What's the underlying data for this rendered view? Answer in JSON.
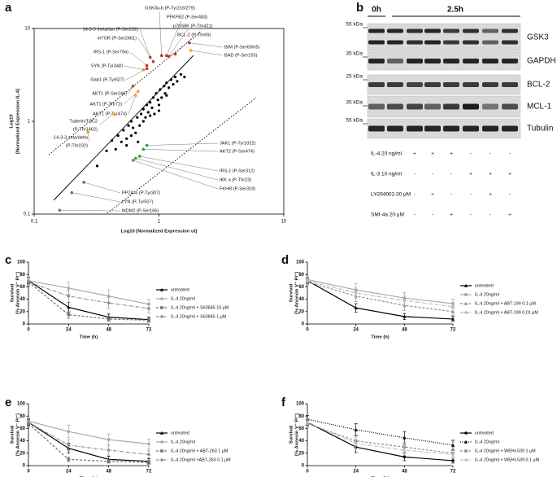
{
  "panel_labels": [
    "a",
    "b",
    "c",
    "d",
    "e",
    "f"
  ],
  "chart_data": [
    {
      "type": "scatter",
      "log_scale": true,
      "xlabel": "Log10 [Normalized Expression ut]",
      "ylabel": [
        "Log10",
        "[Normalized Expression IL-4]"
      ],
      "xlim": [
        0.1,
        10
      ],
      "ylim": [
        0.1,
        10
      ],
      "xticks": [
        0.1,
        1,
        10
      ],
      "yticks": [
        0.1,
        1,
        10
      ],
      "series": [
        {
          "color": "#000000",
          "x": [
            0.32,
            0.38,
            0.42,
            0.45,
            0.47,
            0.5,
            0.52,
            0.55,
            0.57,
            0.6,
            0.6,
            0.62,
            0.65,
            0.67,
            0.7,
            0.72,
            0.75,
            0.75,
            0.78,
            0.8,
            0.82,
            0.85,
            0.88,
            0.9,
            0.92,
            0.95,
            0.98,
            1.0,
            1.02,
            1.05,
            1.1,
            1.12,
            1.15,
            1.2,
            1.25,
            1.3,
            1.35,
            1.4,
            1.5,
            1.6,
            0.55,
            0.68,
            0.85,
            1.0,
            1.15
          ],
          "values": [
            0.33,
            0.48,
            0.62,
            0.5,
            0.7,
            0.6,
            0.8,
            0.55,
            0.9,
            0.7,
            1.0,
            0.85,
            0.75,
            1.1,
            0.9,
            1.2,
            1.0,
            1.35,
            1.1,
            1.5,
            1.25,
            1.6,
            1.4,
            1.8,
            1.2,
            2.0,
            1.7,
            1.5,
            2.2,
            1.8,
            2.4,
            2.0,
            2.6,
            2.3,
            2.8,
            2.5,
            3.0,
            2.7,
            3.2,
            3.0,
            0.65,
            0.6,
            1.15,
            1.3,
            1.9
          ]
        }
      ],
      "annotations": [
        {
          "text": "14-3-3 theta/tau (P-Ser232)",
          "x": 0.85,
          "y": 4.9,
          "color": "#c0392b"
        },
        {
          "text": "mTOR (P-Ser2481)",
          "x": 0.9,
          "y": 4.4,
          "color": "#c0392b"
        },
        {
          "text": "IRS-1 (P-Ser794)",
          "x": 0.8,
          "y": 4.0,
          "color": "#c0392b"
        },
        {
          "text": "SYK (P-Tyr348)",
          "x": 0.75,
          "y": 3.6,
          "color": "#f0a030"
        },
        {
          "text": "Gab1 (P-Tyr627)",
          "x": 0.8,
          "y": 3.7,
          "color": "#c0392b"
        },
        {
          "text": "AKT1 (P-Ser246)",
          "x": 0.62,
          "y": 2.4,
          "color": "#c0392b"
        },
        {
          "text": "AKT1 (P-Thr72)",
          "x": 0.68,
          "y": 2.1,
          "color": "#f0a030"
        },
        {
          "text": "AKT1 (P-Tyr474)",
          "x": 0.65,
          "y": 1.9,
          "color": "#f0a030"
        },
        {
          "text": [
            "Tuberin/TSC2",
            "(P-Thr1462)"
          ],
          "x": 0.43,
          "y": 1.2,
          "color": "#f0a030"
        },
        {
          "text": [
            "14-3-3 zeta/delta",
            "(P-Thr232)"
          ],
          "x": 0.27,
          "y": 0.76,
          "color": "#f0a030"
        },
        {
          "text": "GSK3a-b (P-Tyr216/279)",
          "x": 1.05,
          "y": 5.1,
          "color": "#c0392b"
        },
        {
          "text": "PFKFB2 (P-Ser483)",
          "x": 1.15,
          "y": 5.1,
          "color": "#c0392b"
        },
        {
          "text": "p70S6K (P-Thr421)",
          "x": 1.2,
          "y": 5.0,
          "color": "#c0392b"
        },
        {
          "text": "BCL-2 (P-Thr69)",
          "x": 1.35,
          "y": 5.3,
          "color": "#c0392b"
        },
        {
          "text": "BIM (P-Ser69/65)",
          "x": 1.75,
          "y": 7.0,
          "color": "#c0392b"
        },
        {
          "text": "BAD (P-Ser155)",
          "x": 1.8,
          "y": 5.8,
          "color": "#f0a030"
        },
        {
          "text": "JAK1 (P-Tyr1022)",
          "x": 0.8,
          "y": 0.55,
          "color": "#3a9a3a"
        },
        {
          "text": "AKT2 (P-Ser474)",
          "x": 0.75,
          "y": 0.5,
          "color": "#3a9a3a"
        },
        {
          "text": "IRS-1 (P-Ser312)",
          "x": 0.7,
          "y": 0.42,
          "color": "#3a9a3a"
        },
        {
          "text": "IKK a  (P-Thr23)",
          "x": 0.65,
          "y": 0.4,
          "color": "#3a9a3a"
        },
        {
          "text": "FKHR (P-Ser319)",
          "x": 0.62,
          "y": 0.38,
          "color": "#3a9a3a"
        },
        {
          "text": "PP2A-a (P-Tyr307)",
          "x": 0.25,
          "y": 0.22,
          "color": "#3a9a3a"
        },
        {
          "text": "LYN (P-Tyr507)",
          "x": 0.2,
          "y": 0.17,
          "color": "#3a9a3a"
        },
        {
          "text": "MDM2 (P-Ser166)",
          "x": 0.16,
          "y": 0.11,
          "color": "#3a9a3a"
        }
      ]
    },
    {
      "type": "line",
      "xlabel": "Time (h)",
      "ylabel": [
        "Survival",
        "[% Annexin V⁻ PI⁻]"
      ],
      "x": [
        0,
        24,
        48,
        72
      ],
      "xlim": [
        0,
        72
      ],
      "xticks": [
        0,
        24,
        48,
        72
      ],
      "ylim": [
        0,
        100
      ],
      "yticks": [
        0,
        20,
        40,
        60,
        80,
        100
      ],
      "series": [
        {
          "name": "untreated",
          "color": "#000000",
          "dash": "solid",
          "marker": "triangle",
          "values": [
            70,
            27,
            11,
            7
          ],
          "errors": [
            5,
            8,
            5,
            4
          ]
        },
        {
          "name": "IL-4 20ng/ml",
          "color": "#a8a8a8",
          "dash": "solid",
          "marker": "circle",
          "values": [
            70,
            58,
            45,
            32
          ],
          "errors": [
            6,
            10,
            10,
            8
          ]
        },
        {
          "name": "IL-4 20ng/ml + S63845 10 µM",
          "color": "#707070",
          "dash": "dashed",
          "marker": "square",
          "values": [
            68,
            15,
            8,
            6
          ],
          "errors": [
            6,
            6,
            4,
            3
          ]
        },
        {
          "name": "IL-4 20ng/ml + S63845 1 µM",
          "color": "#909090",
          "dash": "dashdot",
          "marker": "circle",
          "values": [
            68,
            45,
            34,
            25
          ],
          "errors": [
            7,
            10,
            9,
            7
          ]
        }
      ]
    },
    {
      "type": "line",
      "xlabel": "Time (h)",
      "ylabel": [
        "Survival",
        "[% Annexin V⁻ PI⁻]"
      ],
      "x": [
        0,
        24,
        48,
        72
      ],
      "xlim": [
        0,
        72
      ],
      "xticks": [
        0,
        24,
        48,
        72
      ],
      "ylim": [
        0,
        100
      ],
      "yticks": [
        0,
        20,
        40,
        60,
        80,
        100
      ],
      "series": [
        {
          "name": "untreated",
          "color": "#000000",
          "dash": "solid",
          "marker": "triangle",
          "values": [
            70,
            26,
            12,
            8
          ],
          "errors": [
            5,
            7,
            5,
            4
          ]
        },
        {
          "name": "IL-4 20ng/ml",
          "color": "#a8a8a8",
          "dash": "solid",
          "marker": "square",
          "values": [
            72,
            55,
            42,
            33
          ],
          "errors": [
            6,
            10,
            9,
            7
          ]
        },
        {
          "name": "IL-4 20ng/ml + ABT-199 0.1 µM",
          "color": "#909090",
          "dash": "dashed",
          "marker": "triangle",
          "values": [
            68,
            45,
            30,
            20
          ],
          "errors": [
            6,
            9,
            8,
            6
          ]
        },
        {
          "name": "IL-4 20ng/ml + ABT-199 0.01 µM",
          "color": "#b8b8b8",
          "dash": "dashdot",
          "marker": "circle",
          "values": [
            70,
            50,
            38,
            28
          ],
          "errors": [
            6,
            9,
            8,
            7
          ]
        }
      ]
    },
    {
      "type": "line",
      "xlabel": "Time (h)",
      "ylabel": [
        "Survival",
        "[% Annexin V⁻ PI⁻]"
      ],
      "x": [
        0,
        24,
        48,
        72
      ],
      "xlim": [
        0,
        72
      ],
      "xticks": [
        0,
        24,
        48,
        72
      ],
      "ylim": [
        0,
        100
      ],
      "yticks": [
        0,
        20,
        40,
        60,
        80,
        100
      ],
      "series": [
        {
          "name": "untreated",
          "color": "#000000",
          "dash": "solid",
          "marker": "triangle",
          "values": [
            70,
            28,
            10,
            7
          ],
          "errors": [
            5,
            8,
            5,
            4
          ]
        },
        {
          "name": "IL-4 20ng/ml",
          "color": "#a8a8a8",
          "dash": "solid",
          "marker": "circle",
          "values": [
            72,
            55,
            42,
            35
          ],
          "errors": [
            6,
            10,
            9,
            8
          ]
        },
        {
          "name": "IL-4 20ng/ml + ABT-263 1 µM",
          "color": "#707070",
          "dash": "dashed",
          "marker": "square",
          "values": [
            68,
            10,
            7,
            5
          ],
          "errors": [
            6,
            4,
            3,
            3
          ]
        },
        {
          "name": "IL-4 20ng/ml +ABT-263 0.1 µM",
          "color": "#909090",
          "dash": "dashdot",
          "marker": "circle",
          "values": [
            70,
            33,
            25,
            18
          ],
          "errors": [
            6,
            9,
            8,
            6
          ]
        }
      ]
    },
    {
      "type": "line",
      "xlabel": "Time [h]",
      "ylabel": [
        "Survival",
        "[% Annexin V⁻ PI⁻]"
      ],
      "x": [
        0,
        24,
        48,
        72
      ],
      "xlim": [
        0,
        72
      ],
      "xticks": [
        0,
        24,
        48,
        72
      ],
      "ylim": [
        0,
        100
      ],
      "yticks": [
        0,
        20,
        40,
        60,
        80,
        100
      ],
      "series": [
        {
          "name": "untreated",
          "color": "#000000",
          "dash": "solid",
          "marker": "circle",
          "values": [
            70,
            30,
            14,
            8
          ],
          "errors": [
            5,
            9,
            6,
            4
          ]
        },
        {
          "name": "IL-4 20ng/ml",
          "color": "#000000",
          "dash": "dotted",
          "marker": "triangle",
          "values": [
            75,
            58,
            45,
            33
          ],
          "errors": [
            6,
            10,
            10,
            8
          ]
        },
        {
          "name": "IL-4 20ng/ml + WEHI-539 1 µM",
          "color": "#909090",
          "dash": "dashed",
          "marker": "square",
          "values": [
            68,
            40,
            30,
            20
          ],
          "errors": [
            6,
            9,
            8,
            6
          ]
        },
        {
          "name": "IL-4 20ng/ml + WEHI-539 0.1 µM",
          "color": "#c0c0c0",
          "dash": "dashdot",
          "marker": "circle",
          "values": [
            70,
            36,
            25,
            18
          ],
          "errors": [
            6,
            9,
            8,
            6
          ]
        }
      ]
    }
  ],
  "blot": {
    "time_labels": [
      "0h",
      "2.5h"
    ],
    "markers": [
      "55 kDa",
      "35 kDa",
      "25 kDa",
      "35 kDa",
      "55 kDa"
    ],
    "proteins": [
      "GSK3",
      "GAPDH",
      "BCL-2",
      "MCL-1",
      "Tubulin"
    ],
    "conditions": [
      {
        "label": "IL-4 20 ng/ml",
        "signs": [
          "-",
          "-",
          "+",
          "+",
          "+",
          "-",
          "-",
          "-"
        ]
      },
      {
        "label": "IL-3 10 ng/ml",
        "signs": [
          "-",
          "-",
          "-",
          "-",
          "-",
          "+",
          "+",
          "+"
        ]
      },
      {
        "label": "LY294002 30 µM",
        "signs": [
          "-",
          "-",
          "-",
          "+",
          "-",
          "-",
          "+",
          "-"
        ]
      },
      {
        "label": "SMI-4a 20 µM",
        "signs": [
          "-",
          "-",
          "-",
          "-",
          "+",
          "-",
          "-",
          "+"
        ]
      }
    ]
  }
}
